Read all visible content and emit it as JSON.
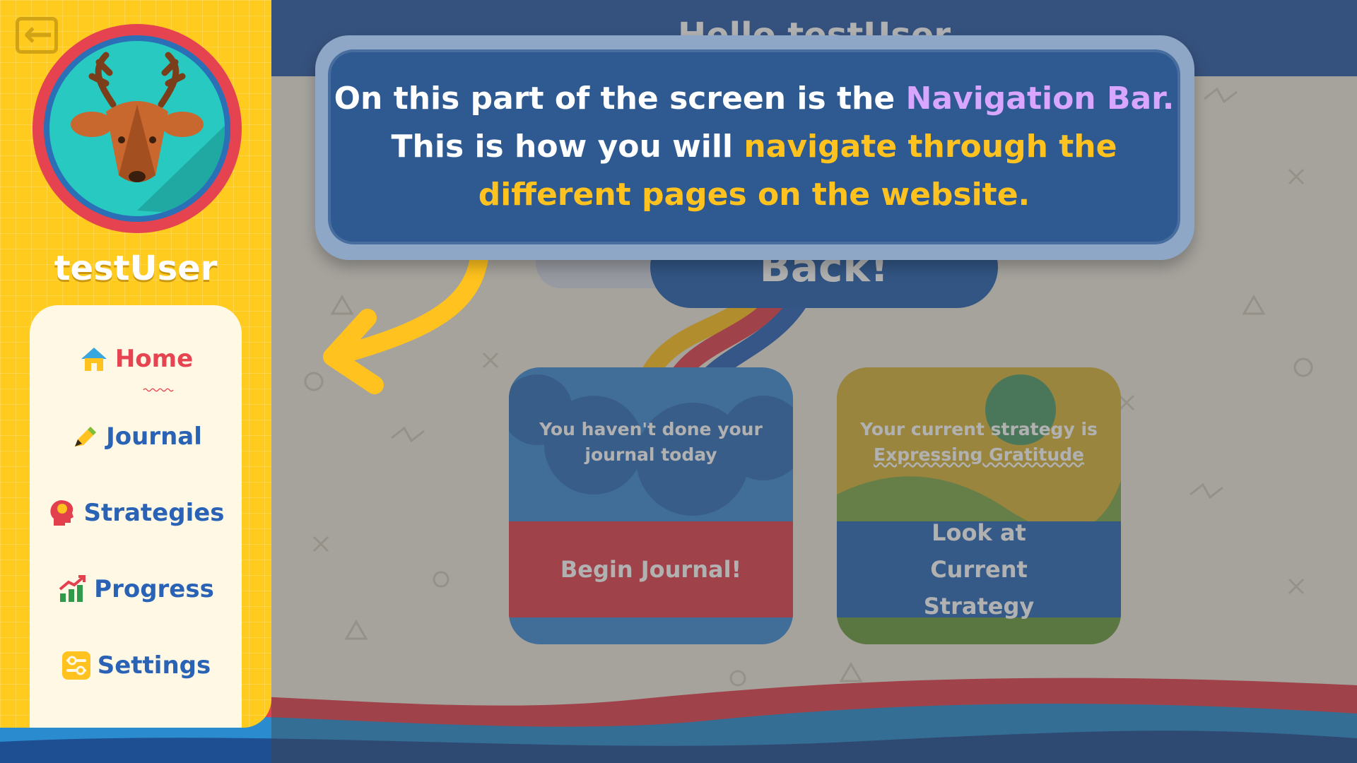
{
  "header": {
    "greeting": "Hello testUser"
  },
  "sidebar": {
    "username": "testUser",
    "avatar_icon": "deer-icon",
    "nav": [
      {
        "label": "Home",
        "icon": "house-icon",
        "active": true
      },
      {
        "label": "Journal",
        "icon": "pencil-icon"
      },
      {
        "label": "Strategies",
        "icon": "head-lightbulb-icon"
      },
      {
        "label": "Progress",
        "icon": "chart-up-icon"
      },
      {
        "label": "Settings",
        "icon": "sliders-icon"
      }
    ]
  },
  "main": {
    "welcome_bubble": "Back!",
    "journal_card": {
      "message": "You haven't done your journal today",
      "button": "Begin Journal!"
    },
    "strategy_card": {
      "message_prefix": "Your current strategy is",
      "strategy_name": "Expressing Gratitude",
      "button": "Look at Current Strategy"
    }
  },
  "tooltip": {
    "part1": "On this part of the screen is the ",
    "highlight1": "Navigation Bar.",
    "part2": "This is how you will ",
    "highlight2": "navigate through the different pages on the website."
  },
  "colors": {
    "sidebar": "#ffcb1f",
    "active_nav": "#e64451",
    "nav_text": "#2a62b5",
    "tooltip_bg": "#2e5a91",
    "highlight_purple": "#d9a6ff",
    "highlight_yellow": "#ffc21e"
  }
}
